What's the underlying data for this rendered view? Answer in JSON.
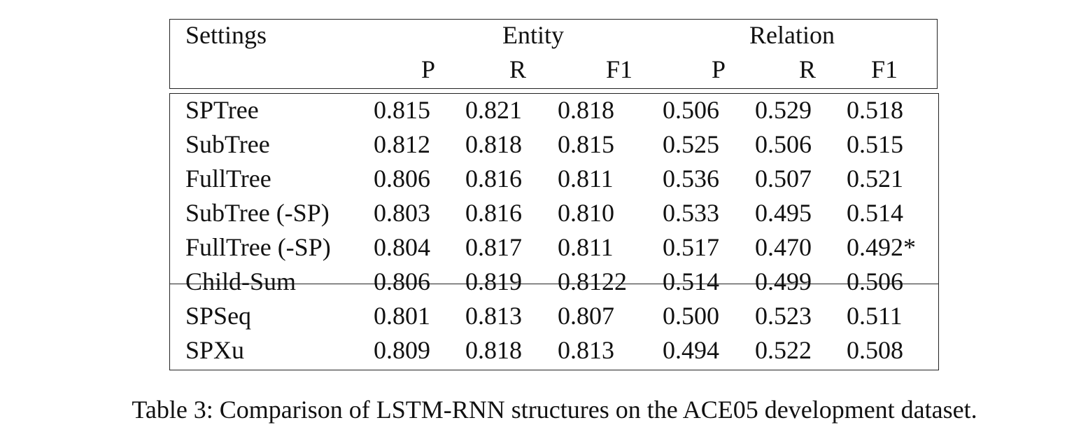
{
  "header": {
    "settings": "Settings",
    "entity": "Entity",
    "relation": "Relation",
    "subcols": [
      "P",
      "R",
      "F1",
      "P",
      "R",
      "F1"
    ]
  },
  "rows": [
    {
      "name": "SPTree",
      "values": [
        "0.815",
        "0.821",
        "0.818",
        "0.506",
        "0.529",
        "0.518"
      ]
    },
    {
      "name": "SubTree",
      "values": [
        "0.812",
        "0.818",
        "0.815",
        "0.525",
        "0.506",
        "0.515"
      ]
    },
    {
      "name": "FullTree",
      "values": [
        "0.806",
        "0.816",
        "0.811",
        "0.536",
        "0.507",
        "0.521"
      ]
    },
    {
      "name": "SubTree (-SP)",
      "values": [
        "0.803",
        "0.816",
        "0.810",
        "0.533",
        "0.495",
        "0.514"
      ]
    },
    {
      "name": "FullTree (-SP)",
      "values": [
        "0.804",
        "0.817",
        "0.811",
        "0.517",
        "0.470",
        "0.492*"
      ]
    },
    {
      "name": "Child-Sum",
      "values": [
        "0.806",
        "0.819",
        "0.8122",
        "0.514",
        "0.499",
        "0.506"
      ]
    },
    {
      "name": "SPSeq",
      "values": [
        "0.801",
        "0.813",
        "0.807",
        "0.500",
        "0.523",
        "0.511"
      ]
    },
    {
      "name": "SPXu",
      "values": [
        "0.809",
        "0.818",
        "0.813",
        "0.494",
        "0.522",
        "0.508"
      ]
    }
  ],
  "caption": "Table 3: Comparison of LSTM-RNN structures on the ACE05 development dataset."
}
